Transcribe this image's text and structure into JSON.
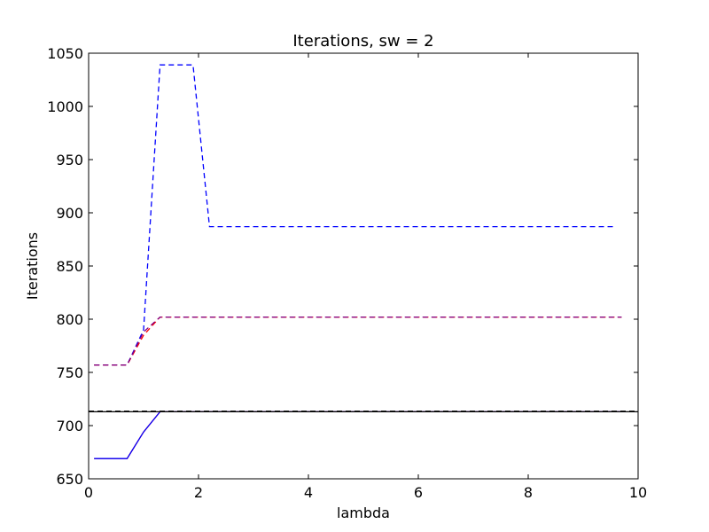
{
  "chart_data": {
    "type": "line",
    "title": "Iterations, sw = 2",
    "xlabel": "lambda",
    "ylabel": "Iterations",
    "xlim": [
      0,
      10
    ],
    "ylim": [
      650,
      1050
    ],
    "grid": false,
    "legend": "none",
    "x_ticks": [
      "0",
      "2",
      "4",
      "6",
      "8",
      "10"
    ],
    "y_ticks": [
      "650",
      "700",
      "750",
      "800",
      "850",
      "900",
      "950",
      "1000",
      "1050"
    ],
    "series": [
      {
        "color": "#0000ff",
        "style": "dashed",
        "x": [
          0.1,
          0.7,
          1.0,
          1.3,
          1.6,
          1.9,
          2.2,
          2.5,
          3,
          4,
          5,
          6,
          7,
          8,
          9,
          9.6
        ],
        "y": [
          757,
          757,
          790,
          1039,
          1039,
          1039,
          887,
          887,
          887,
          887,
          887,
          887,
          887,
          887,
          887,
          887
        ]
      },
      {
        "color": "#ff0000",
        "style": "dashed",
        "x": [
          0.1,
          0.7,
          1.0,
          1.3,
          2,
          3,
          4,
          5,
          6,
          7,
          8,
          9,
          9.7
        ],
        "y": [
          757,
          757,
          785,
          802,
          802,
          802,
          802,
          802,
          802,
          802,
          802,
          802,
          802
        ]
      },
      {
        "color": "#800080",
        "style": "dashed",
        "x": [
          0.1,
          0.7,
          1.0,
          1.3,
          2,
          4,
          6,
          8,
          9.7
        ],
        "y": [
          757,
          757,
          788,
          802,
          802,
          802,
          802,
          802,
          802
        ]
      },
      {
        "color": "#ff0000",
        "style": "solid",
        "x": [
          0.1,
          0.7,
          1.0,
          1.3,
          2,
          3,
          4,
          5,
          6,
          7,
          8,
          9,
          9.7
        ],
        "y": [
          669,
          669,
          694,
          713,
          713,
          713,
          713,
          713,
          713,
          713,
          713,
          713,
          713
        ]
      },
      {
        "color": "#0000ff",
        "style": "solid",
        "x": [
          0.1,
          0.7,
          1.0,
          1.3,
          2,
          4,
          6,
          8,
          9.7
        ],
        "y": [
          669,
          669,
          694,
          713,
          713,
          713,
          713,
          713,
          713
        ]
      },
      {
        "color": "#000000",
        "style": "solid",
        "x": [
          0,
          10
        ],
        "y": [
          713,
          713
        ]
      },
      {
        "color": "#000000",
        "style": "dashed",
        "x": [
          0,
          10
        ],
        "y": [
          713.5,
          713.5
        ]
      }
    ]
  }
}
